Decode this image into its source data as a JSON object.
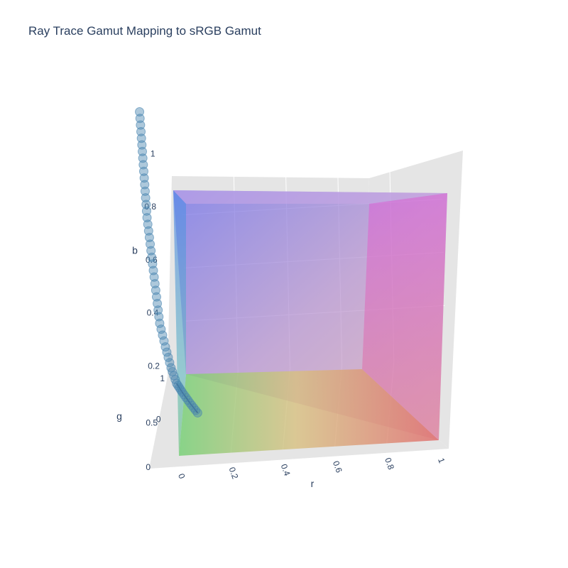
{
  "chart_data": {
    "type": "scatter",
    "title": "Ray Trace Gamut Mapping to sRGB Gamut",
    "axes": {
      "x": {
        "label": "r",
        "range": [
          0,
          1
        ],
        "ticks": [
          "0",
          "0.2",
          "0.4",
          "0.6",
          "0.8",
          "1"
        ]
      },
      "y": {
        "label": "g",
        "range": [
          0,
          1
        ],
        "ticks": [
          "0",
          "0.5",
          "1"
        ]
      },
      "z": {
        "label": "b",
        "range": [
          0,
          1
        ],
        "ticks": [
          "0",
          "0.2",
          "0.4",
          "0.6",
          "0.8",
          "1"
        ]
      }
    },
    "grid": true,
    "legend": "none",
    "colors": {
      "marker": "#4a85b0",
      "path": "#0e1e3a",
      "text": "#2a3f5f",
      "cube_gradient": [
        "#6a6aee",
        "#e070d8",
        "#88e088",
        "#e08070"
      ]
    },
    "series": [
      {
        "marker": "circle",
        "points": [
          {
            "r": -0.14,
            "g": 0.5,
            "b": 1.15
          },
          {
            "r": -0.135,
            "g": 0.5,
            "b": 1.05
          },
          {
            "r": -0.13,
            "g": 0.5,
            "b": 0.95
          },
          {
            "r": -0.125,
            "g": 0.5,
            "b": 0.85
          },
          {
            "r": -0.12,
            "g": 0.5,
            "b": 0.75
          },
          {
            "r": -0.11,
            "g": 0.5,
            "b": 0.65
          },
          {
            "r": -0.1,
            "g": 0.5,
            "b": 0.55
          },
          {
            "r": -0.09,
            "g": 0.5,
            "b": 0.45
          },
          {
            "r": -0.08,
            "g": 0.5,
            "b": 0.35
          },
          {
            "r": -0.06,
            "g": 0.5,
            "b": 0.26
          },
          {
            "r": -0.04,
            "g": 0.5,
            "b": 0.18
          },
          {
            "r": -0.02,
            "g": 0.5,
            "b": 0.12
          },
          {
            "r": 0.0,
            "g": 0.52,
            "b": 0.08
          },
          {
            "r": 0.03,
            "g": 0.48,
            "b": 0.05
          },
          {
            "r": 0.06,
            "g": 0.45,
            "b": 0.02
          }
        ]
      }
    ]
  }
}
